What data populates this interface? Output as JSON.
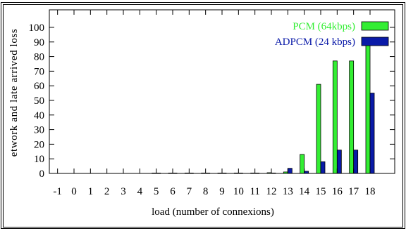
{
  "chart_data": {
    "type": "bar",
    "xlabel": "load (number of connexions)",
    "ylabel": "etwork and late arrived loss",
    "x_ticks": [
      "-1",
      "0",
      "1",
      "2",
      "3",
      "4",
      "5",
      "6",
      "7",
      "8",
      "9",
      "10",
      "11",
      "12",
      "13",
      "14",
      "15",
      "16",
      "17",
      "18"
    ],
    "y_ticks": [
      "0",
      "10",
      "20",
      "30",
      "40",
      "50",
      "60",
      "70",
      "80",
      "90",
      "100"
    ],
    "xlim": [
      -1.5,
      19.5
    ],
    "ylim": [
      0,
      112
    ],
    "categories": [
      5,
      6,
      7,
      8,
      9,
      10,
      11,
      12,
      13,
      14,
      15,
      16,
      17,
      18
    ],
    "series": [
      {
        "name": "PCM (64kbps)",
        "color": "#33ee33",
        "values": [
          0.2,
          0.2,
          0.3,
          0.3,
          0.2,
          0.3,
          0.3,
          0.5,
          1,
          13,
          61,
          77,
          77,
          90
        ]
      },
      {
        "name": "ADPCM (24 kbps)",
        "color": "#0a1aa8",
        "values": [
          0,
          0,
          0,
          0,
          0,
          0,
          0,
          0.3,
          3.5,
          1.5,
          8,
          16,
          16,
          55
        ]
      }
    ],
    "legend_position": "top-right",
    "grid": false
  }
}
